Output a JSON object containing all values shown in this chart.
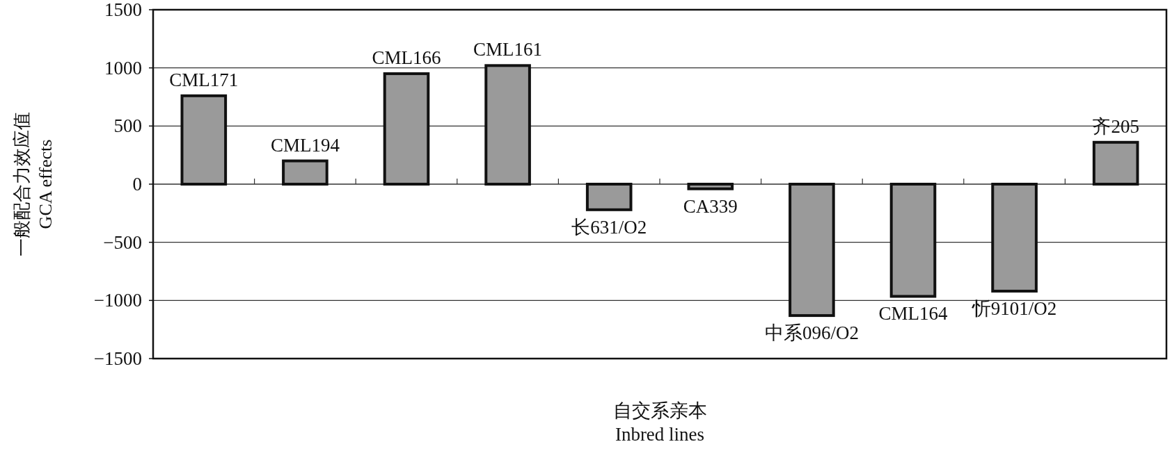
{
  "chart_data": {
    "type": "bar",
    "categories": [
      "CML171",
      "CML194",
      "CML166",
      "CML161",
      "长631/O2",
      "CA339",
      "中系096/O2",
      "CML164",
      "忻9101/O2",
      "齐205"
    ],
    "values": [
      760,
      200,
      950,
      1020,
      -220,
      -40,
      -1130,
      -965,
      -920,
      360
    ],
    "color": "#9a9a9a",
    "ylim": [
      -1500,
      1500
    ],
    "yticks": [
      -1500,
      -1000,
      -500,
      0,
      500,
      1000,
      1500
    ],
    "grid": "y",
    "ylabel": "一般配合力效应值\nGCA effects",
    "xlabel": "自交系亲本\nInbred lines"
  }
}
